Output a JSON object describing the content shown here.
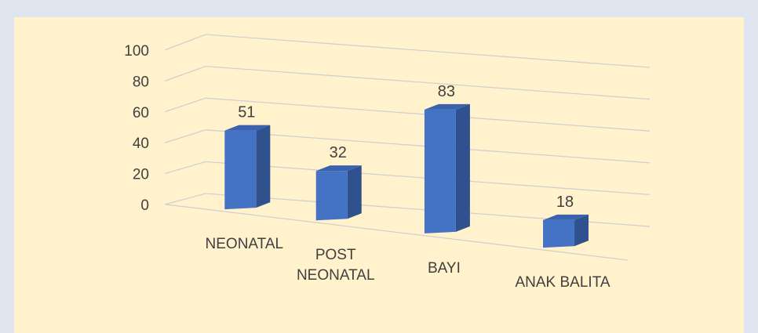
{
  "chart_data": {
    "type": "bar",
    "style": "3d-column",
    "categories": [
      "NEONATAL",
      "POST NEONATAL",
      "BAYI",
      "ANAK BALITA"
    ],
    "category_lines": [
      [
        "NEONATAL"
      ],
      [
        "POST",
        "NEONATAL"
      ],
      [
        "BAYI"
      ],
      [
        "ANAK BALITA"
      ]
    ],
    "values": [
      51,
      32,
      83,
      18
    ],
    "data_labels": [
      "51",
      "32",
      "83",
      "18"
    ],
    "yticks": [
      "0",
      "20",
      "40",
      "60",
      "80",
      "100"
    ],
    "ylim": [
      0,
      100
    ],
    "grid": true,
    "legend": "none",
    "colors": {
      "bar_front": "#4472c4",
      "bar_side": "#2f528f",
      "bar_top": "#3a62ad",
      "grid": "#d0d0d0",
      "text": "#404040",
      "plot_background": "#fff2cc",
      "page_background": "#dfe4ee"
    }
  }
}
